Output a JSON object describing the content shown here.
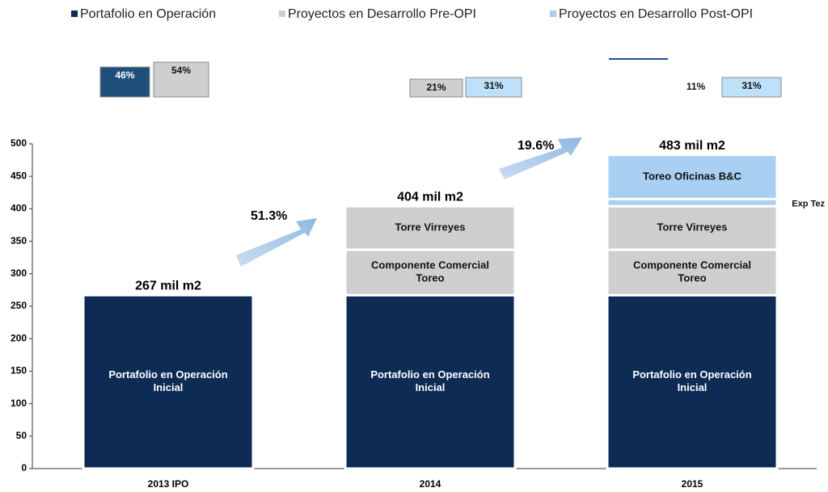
{
  "chart_data": {
    "type": "stacked_bar",
    "legend": [
      {
        "name": "Portafolio en Operación",
        "color": "#0d2b55"
      },
      {
        "name": "Proyectos en Desarrollo Pre-OPI",
        "color": "#cfcfcf"
      },
      {
        "name": "Proyectos en Desarrollo Post-OPI",
        "color": "#a9cff2"
      }
    ],
    "categories": [
      "2013 IPO",
      "2014",
      "2015"
    ],
    "series": [
      {
        "label_lines": [
          "Portafolio en Operación",
          "Inicial"
        ],
        "color": "#0d2b55",
        "values": [
          267,
          267,
          267
        ]
      },
      {
        "label_lines": [
          "Componente Comercial",
          "Toreo"
        ],
        "color": "#cfcfcf",
        "values": [
          null,
          70,
          70
        ]
      },
      {
        "label_lines": [
          "Torre Virreyes"
        ],
        "color": "#cfcfcf",
        "values": [
          null,
          67,
          67
        ]
      },
      {
        "label_lines": [
          "Exp Tez"
        ],
        "color": "#a9cff2",
        "values": [
          null,
          null,
          11
        ]
      },
      {
        "label_lines": [
          "Toreo Oficinas B&C"
        ],
        "color": "#a9cff2",
        "values": [
          null,
          null,
          68
        ]
      }
    ],
    "totals": [
      267,
      404,
      483
    ],
    "total_labels": [
      "267 mil m2",
      "404 mil m2",
      "483 mil m2"
    ],
    "growth_labels": [
      "51.3%",
      "19.6%"
    ],
    "shares": [
      [
        {
          "value": 46,
          "label": "46%",
          "color": "#1f4e7a"
        },
        {
          "value": 54,
          "label": "54%",
          "color": "#cfcfcf"
        }
      ],
      [
        {
          "value": 21,
          "label": "21%",
          "color": "#cfcfcf"
        },
        {
          "value": 31,
          "label": "31%",
          "color": "#bfe0fb"
        }
      ],
      [
        {
          "value": 11,
          "label": "11%",
          "color": null
        },
        {
          "value": 31,
          "label": "31%",
          "color": "#bfe0fb"
        }
      ]
    ],
    "ylim": [
      0,
      500
    ],
    "yticks": [
      0,
      50,
      100,
      150,
      200,
      250,
      300,
      350,
      400,
      450,
      500
    ]
  }
}
